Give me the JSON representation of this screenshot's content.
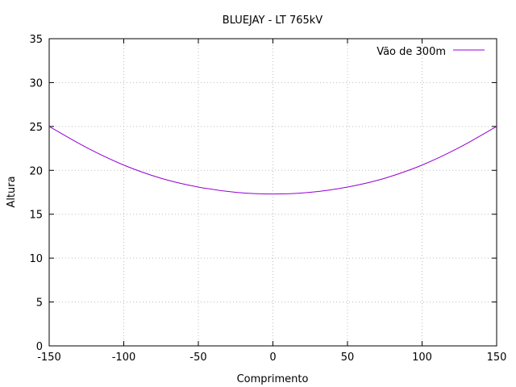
{
  "chart_data": {
    "type": "line",
    "title": "BLUEJAY - LT 765kV",
    "xlabel": "Comprimento",
    "ylabel": "Altura",
    "xlim": [
      -150,
      150
    ],
    "ylim": [
      0,
      35
    ],
    "xticks": [
      -150,
      -100,
      -50,
      0,
      50,
      100,
      150
    ],
    "yticks": [
      0,
      5,
      10,
      15,
      20,
      25,
      30,
      35
    ],
    "grid": true,
    "legend_position": "top-right",
    "series": [
      {
        "name": "Vão de 300m",
        "color": "#9400d3",
        "x": [
          -150,
          -125,
          -100,
          -75,
          -50,
          -25,
          0,
          25,
          50,
          75,
          100,
          125,
          150
        ],
        "y": [
          25.0,
          22.6,
          20.6,
          19.1,
          18.1,
          17.5,
          17.3,
          17.5,
          18.1,
          19.1,
          20.6,
          22.6,
          25.0
        ]
      }
    ]
  }
}
